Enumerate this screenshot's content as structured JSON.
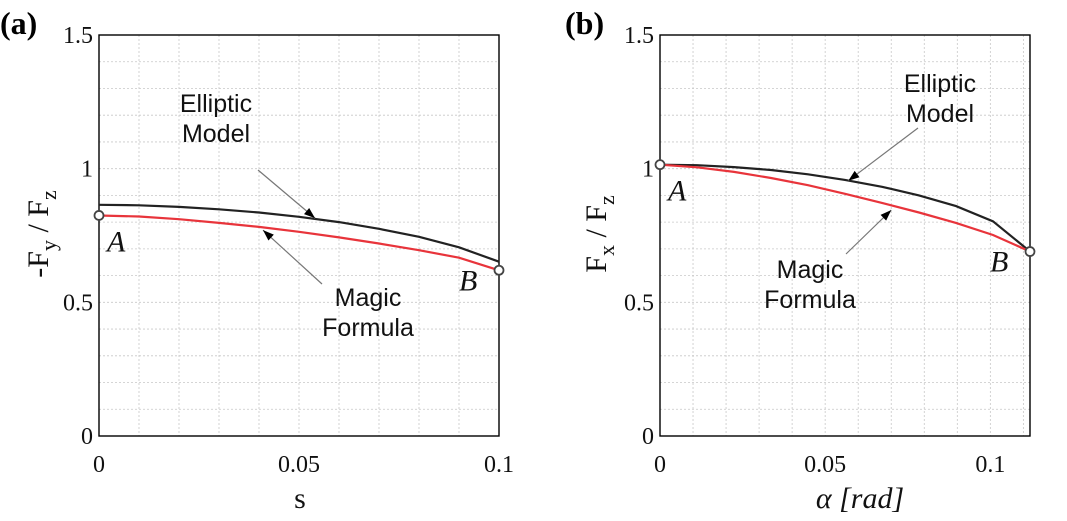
{
  "chart_data": [
    {
      "type": "line",
      "panel_label": "(a)",
      "xlabel": "s",
      "ylabel_main": "-F",
      "ylabel_sub1": "y",
      "ylabel_mid": " / F",
      "ylabel_sub2": "z",
      "xlim": [
        0,
        0.1
      ],
      "ylim": [
        0,
        1.5
      ],
      "xticks": [
        0,
        0.05,
        0.1
      ],
      "xtick_labels": [
        "0",
        "0.05",
        "0.1"
      ],
      "yticks": [
        0,
        0.5,
        1,
        1.5
      ],
      "ytick_labels": [
        "0",
        "0.5",
        "1",
        "1.5"
      ],
      "grid": true,
      "series": [
        {
          "name": "Elliptic Model",
          "color": "#222222",
          "x": [
            0,
            0.01,
            0.02,
            0.03,
            0.04,
            0.05,
            0.06,
            0.07,
            0.08,
            0.09,
            0.1
          ],
          "y": [
            0.865,
            0.863,
            0.857,
            0.848,
            0.836,
            0.82,
            0.8,
            0.775,
            0.745,
            0.706,
            0.652
          ]
        },
        {
          "name": "Magic Formula",
          "color": "#e8343b",
          "x": [
            0,
            0.01,
            0.02,
            0.03,
            0.04,
            0.05,
            0.06,
            0.07,
            0.08,
            0.09,
            0.1
          ],
          "y": [
            0.825,
            0.821,
            0.811,
            0.797,
            0.782,
            0.764,
            0.743,
            0.72,
            0.695,
            0.667,
            0.62
          ]
        }
      ],
      "points": [
        {
          "label": "A",
          "x": 0,
          "y": 0.825
        },
        {
          "label": "B",
          "x": 0.1,
          "y": 0.62
        }
      ],
      "annotations": [
        {
          "lines": [
            "Elliptic",
            "Model"
          ],
          "target_series": "Elliptic Model",
          "x": 0.054,
          "y": 0.815
        },
        {
          "lines": [
            "Magic",
            "Formula"
          ],
          "target_series": "Magic Formula",
          "x": 0.041,
          "y": 0.77
        }
      ]
    },
    {
      "type": "line",
      "panel_label": "(b)",
      "xlabel": "α [rad]",
      "ylabel_main": "F",
      "ylabel_sub1": "x",
      "ylabel_mid": " / F",
      "ylabel_sub2": "z",
      "xlim": [
        0,
        0.112
      ],
      "ylim": [
        0,
        1.5
      ],
      "xticks": [
        0,
        0.05,
        0.1
      ],
      "xtick_labels": [
        "0",
        "0.05",
        "0.1"
      ],
      "yticks": [
        0,
        0.5,
        1,
        1.5
      ],
      "ytick_labels": [
        "0",
        "0.5",
        "1",
        "1.5"
      ],
      "grid": true,
      "series": [
        {
          "name": "Elliptic Model",
          "color": "#222222",
          "x": [
            0,
            0.0112,
            0.0224,
            0.0336,
            0.0448,
            0.056,
            0.0672,
            0.0784,
            0.0896,
            0.1008,
            0.112
          ],
          "y": [
            1.015,
            1.013,
            1.006,
            0.995,
            0.979,
            0.958,
            0.932,
            0.9,
            0.86,
            0.803,
            0.69
          ]
        },
        {
          "name": "Magic Formula",
          "color": "#e8343b",
          "x": [
            0,
            0.0112,
            0.0224,
            0.0336,
            0.0448,
            0.056,
            0.0672,
            0.0784,
            0.0896,
            0.1008,
            0.112
          ],
          "y": [
            1.015,
            1.005,
            0.988,
            0.965,
            0.938,
            0.906,
            0.872,
            0.836,
            0.797,
            0.752,
            0.69
          ]
        }
      ],
      "points": [
        {
          "label": "A",
          "x": 0,
          "y": 1.015
        },
        {
          "label": "B",
          "x": 0.112,
          "y": 0.69
        }
      ],
      "annotations": [
        {
          "lines": [
            "Elliptic",
            "Model"
          ],
          "target_series": "Elliptic Model",
          "x": 0.057,
          "y": 0.955
        },
        {
          "lines": [
            "Magic",
            "Formula"
          ],
          "target_series": "Magic Formula",
          "x": 0.07,
          "y": 0.845
        }
      ]
    }
  ]
}
